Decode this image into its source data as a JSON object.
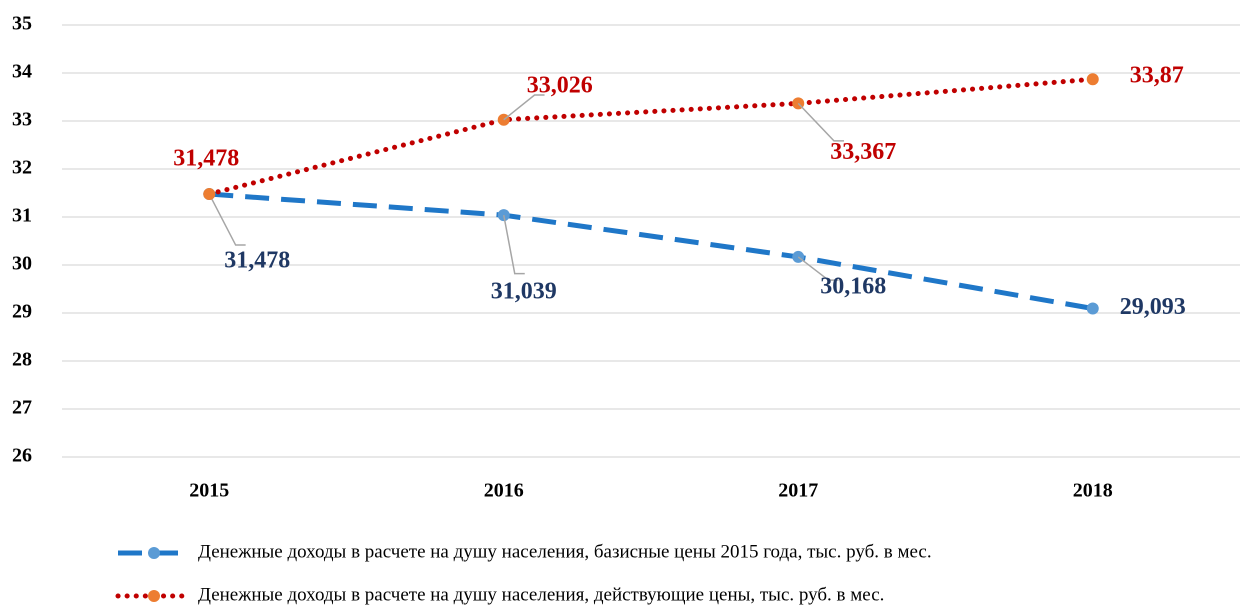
{
  "chart_data": {
    "type": "line",
    "categories": [
      "2015",
      "2016",
      "2017",
      "2018"
    ],
    "series": [
      {
        "name": "Денежные доходы в расчете на душу населения, базисные цены 2015 года, тыс. руб. в мес.",
        "color": "#1f77c8",
        "marker_color": "#5b9bd5",
        "label_color": "#1f3864",
        "dash": "dashed",
        "values": [
          31.478,
          31.039,
          30.168,
          29.093
        ],
        "value_labels": [
          "31,478",
          "31,039",
          "30,168",
          "29,093"
        ]
      },
      {
        "name": "Денежные доходы в расчете на душу населения, действующие цены, тыс. руб. в мес.",
        "color": "#c00000",
        "marker_color": "#ed7d31",
        "label_color": "#c00000",
        "dash": "dotted",
        "values": [
          31.478,
          33.026,
          33.367,
          33.87
        ],
        "value_labels": [
          "31,478",
          "33,026",
          "33,367",
          "33,87"
        ]
      }
    ],
    "ylim": [
      26,
      35
    ],
    "yticks": [
      26,
      27,
      28,
      29,
      30,
      31,
      32,
      33,
      34,
      35
    ],
    "grid": true
  }
}
